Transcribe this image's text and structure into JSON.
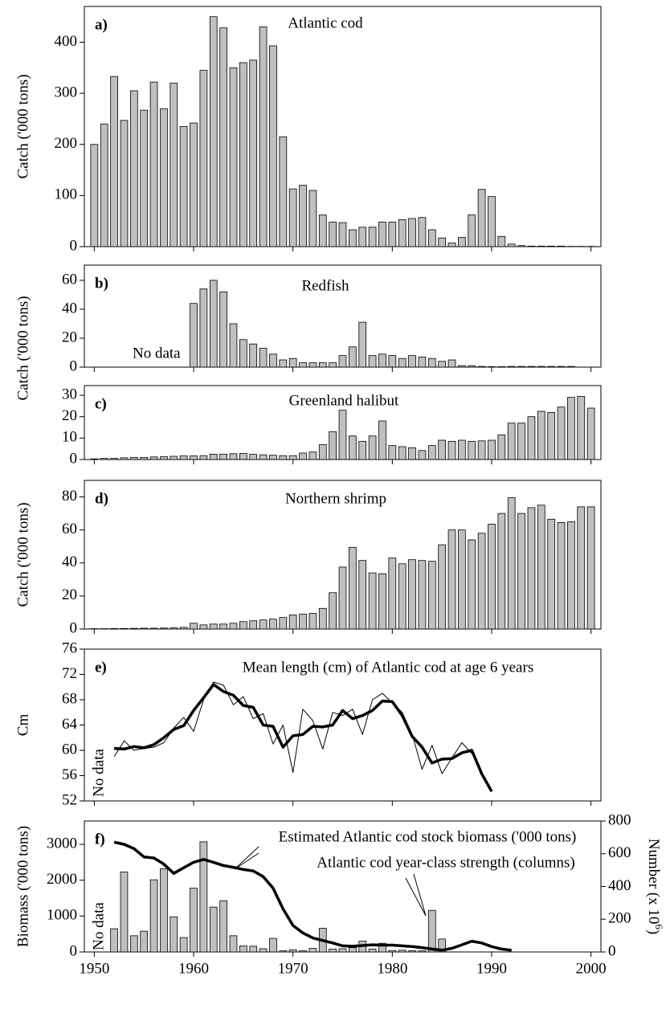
{
  "chart_data": [
    {
      "type": "bar",
      "panel": "a)",
      "title": "Atlantic cod",
      "ylabel": "Catch ('000 tons)",
      "x": [
        1950,
        1951,
        1952,
        1953,
        1954,
        1955,
        1956,
        1957,
        1958,
        1959,
        1960,
        1961,
        1962,
        1963,
        1964,
        1965,
        1966,
        1967,
        1968,
        1969,
        1970,
        1971,
        1972,
        1973,
        1974,
        1975,
        1976,
        1977,
        1978,
        1979,
        1980,
        1981,
        1982,
        1983,
        1984,
        1985,
        1986,
        1987,
        1988,
        1989,
        1990,
        1991,
        1992,
        1993,
        1994,
        1995,
        1996,
        1997,
        1998,
        1999,
        2000
      ],
      "series": [
        {
          "color": "#bfbfbf",
          "values": [
            200,
            240,
            333,
            247,
            305,
            267,
            322,
            270,
            320,
            235,
            242,
            345,
            450,
            428,
            350,
            360,
            365,
            430,
            393,
            215,
            113,
            120,
            110,
            62,
            48,
            47,
            33,
            38,
            38,
            48,
            48,
            53,
            55,
            57,
            33,
            17,
            7,
            18,
            62,
            112,
            98,
            20,
            5,
            2,
            1,
            1,
            1,
            1,
            0.5,
            0.5,
            0.5
          ]
        }
      ],
      "xlim": [
        1949,
        2001
      ],
      "xticks": [
        1950,
        1960,
        1970,
        1980,
        1990,
        2000
      ],
      "ylim": [
        0,
        470
      ],
      "yticks": [
        0,
        100,
        200,
        300,
        400
      ]
    },
    {
      "type": "bar",
      "panel": "b)",
      "title": "Redfish",
      "ylabel": "Catch ('000 tons)",
      "annotation": "No data",
      "x": [
        1950,
        1951,
        1952,
        1953,
        1954,
        1955,
        1956,
        1957,
        1958,
        1959,
        1960,
        1961,
        1962,
        1963,
        1964,
        1965,
        1966,
        1967,
        1968,
        1969,
        1970,
        1971,
        1972,
        1973,
        1974,
        1975,
        1976,
        1977,
        1978,
        1979,
        1980,
        1981,
        1982,
        1983,
        1984,
        1985,
        1986,
        1987,
        1988,
        1989,
        1990,
        1991,
        1992,
        1993,
        1994,
        1995,
        1996,
        1997,
        1998,
        1999,
        2000
      ],
      "series": [
        {
          "color": "#bfbfbf",
          "values": [
            null,
            null,
            null,
            null,
            null,
            null,
            null,
            null,
            null,
            null,
            44,
            54,
            60,
            52,
            30,
            19,
            16,
            13,
            9,
            5,
            6,
            3,
            3,
            3,
            3,
            8,
            14,
            31,
            8,
            9,
            8,
            6,
            8,
            7,
            6,
            4,
            5,
            1,
            1,
            0.5,
            0.3,
            0.3,
            0.5,
            0.5,
            0.5,
            0.5,
            0.5,
            0.5,
            0.5,
            null,
            null
          ]
        }
      ],
      "xlim": [
        1949,
        2001
      ],
      "xticks": [
        1950,
        1960,
        1970,
        1980,
        1990,
        2000
      ],
      "ylim": [
        0,
        70.5
      ],
      "yticks": [
        0,
        20,
        40,
        60
      ]
    },
    {
      "type": "bar",
      "panel": "c)",
      "title": "Greenland halibut",
      "x": [
        1950,
        1951,
        1952,
        1953,
        1954,
        1955,
        1956,
        1957,
        1958,
        1959,
        1960,
        1961,
        1962,
        1963,
        1964,
        1965,
        1966,
        1967,
        1968,
        1969,
        1970,
        1971,
        1972,
        1973,
        1974,
        1975,
        1976,
        1977,
        1978,
        1979,
        1980,
        1981,
        1982,
        1983,
        1984,
        1985,
        1986,
        1987,
        1988,
        1989,
        1990,
        1991,
        1992,
        1993,
        1994,
        1995,
        1996,
        1997,
        1998,
        1999,
        2000
      ],
      "series": [
        {
          "color": "#bfbfbf",
          "values": [
            0.3,
            0.5,
            0.5,
            0.8,
            1,
            1,
            1.2,
            1.3,
            1.5,
            1.7,
            1.7,
            1.8,
            2.5,
            2.5,
            2.7,
            2.8,
            2.4,
            2.2,
            2,
            1.8,
            1.8,
            3,
            3.5,
            7,
            13,
            23,
            11,
            8.5,
            11,
            18,
            6.5,
            6,
            5.5,
            4.2,
            6.5,
            9,
            8.5,
            9,
            8.5,
            8.7,
            9,
            11.5,
            17,
            17,
            20,
            22.5,
            22,
            24.5,
            29,
            29.5,
            24
          ]
        }
      ],
      "xlim": [
        1949,
        2001
      ],
      "xticks": [
        1950,
        1960,
        1970,
        1980,
        1990,
        2000
      ],
      "ylim": [
        0,
        34.5
      ],
      "yticks": [
        0,
        10,
        20,
        30
      ]
    },
    {
      "type": "bar",
      "panel": "d)",
      "title": "Northern shrimp",
      "ylabel": "Catch ('000 tons)",
      "x": [
        1950,
        1951,
        1952,
        1953,
        1954,
        1955,
        1956,
        1957,
        1958,
        1959,
        1960,
        1961,
        1962,
        1963,
        1964,
        1965,
        1966,
        1967,
        1968,
        1969,
        1970,
        1971,
        1972,
        1973,
        1974,
        1975,
        1976,
        1977,
        1978,
        1979,
        1980,
        1981,
        1982,
        1983,
        1984,
        1985,
        1986,
        1987,
        1988,
        1989,
        1990,
        1991,
        1992,
        1993,
        1994,
        1995,
        1996,
        1997,
        1998,
        1999,
        2000
      ],
      "series": [
        {
          "color": "#bfbfbf",
          "values": [
            0.2,
            0.2,
            0.3,
            0.3,
            0.4,
            0.5,
            0.5,
            0.6,
            0.7,
            1,
            3.5,
            2.5,
            3,
            3,
            3.5,
            4.5,
            5,
            5.5,
            6,
            7,
            8.5,
            9,
            9.5,
            12.5,
            22,
            37.5,
            49.5,
            41.5,
            34,
            33.5,
            43,
            39.5,
            42,
            41.5,
            41,
            51,
            60,
            60,
            54,
            58,
            63.5,
            70,
            79.5,
            70,
            73.5,
            75,
            66.5,
            64.5,
            65,
            74,
            74
          ]
        }
      ],
      "xlim": [
        1949,
        2001
      ],
      "xticks": [
        1950,
        1960,
        1970,
        1980,
        1990,
        2000
      ],
      "ylim": [
        0,
        90
      ],
      "yticks": [
        0,
        20,
        40,
        60,
        80
      ]
    },
    {
      "type": "line",
      "panel": "e)",
      "title": "Mean length (cm) of Atlantic cod at age 6 years",
      "ylabel": "Cm",
      "annotation": "No data",
      "x": [
        1952,
        1953,
        1954,
        1955,
        1956,
        1957,
        1958,
        1959,
        1960,
        1961,
        1962,
        1963,
        1964,
        1965,
        1966,
        1967,
        1968,
        1969,
        1970,
        1971,
        1972,
        1973,
        1974,
        1975,
        1976,
        1977,
        1978,
        1979,
        1980,
        1981,
        1982,
        1983,
        1984,
        1985,
        1986,
        1987,
        1988,
        1989,
        1990
      ],
      "series": [
        {
          "color": "#000000",
          "linewidth": 1,
          "values": [
            59,
            61.5,
            60,
            60.3,
            60.5,
            61.2,
            63.5,
            65.2,
            63,
            68,
            70.8,
            70.3,
            67.2,
            68.5,
            65,
            65.8,
            61,
            64,
            56.5,
            66.5,
            64.7,
            60.2,
            66,
            65.5,
            66.5,
            62.5,
            68,
            69,
            67.5,
            66,
            62.5,
            57,
            60.8,
            56.3,
            58.8,
            61.2,
            59.5,
            null,
            null
          ]
        },
        {
          "color": "#000000",
          "linewidth": 3.5,
          "values": [
            60.3,
            60.2,
            60.6,
            60.4,
            60.9,
            62,
            63.3,
            63.9,
            66.3,
            68.3,
            70.4,
            69.3,
            68.7,
            67.1,
            66.8,
            64,
            63.8,
            60.5,
            62.3,
            62.5,
            63.8,
            63.7,
            64,
            66.3,
            65,
            65.5,
            66.3,
            67.8,
            67.7,
            65.5,
            62.2,
            60.5,
            58,
            58.6,
            58.7,
            59.6,
            60,
            56.3,
            53.5
          ]
        }
      ],
      "xlim": [
        1949,
        2001
      ],
      "xticks": [
        1950,
        1960,
        1970,
        1980,
        1990,
        2000
      ],
      "ylim": [
        52,
        76
      ],
      "yticks": [
        52,
        56,
        60,
        64,
        68,
        72,
        76
      ]
    },
    {
      "type": "combo",
      "panel": "f)",
      "ylabel": "Biomass ('000 tons)",
      "y2label": [
        "Number (x 10",
        "6",
        ")"
      ],
      "annotation": "No data",
      "x": [
        1952,
        1953,
        1954,
        1955,
        1956,
        1957,
        1958,
        1959,
        1960,
        1961,
        1962,
        1963,
        1964,
        1965,
        1966,
        1967,
        1968,
        1969,
        1970,
        1971,
        1972,
        1973,
        1974,
        1975,
        1976,
        1977,
        1978,
        1979,
        1980,
        1981,
        1982,
        1983,
        1984,
        1985,
        1986,
        1987,
        1988,
        1989,
        1990,
        1991,
        1992
      ],
      "series": [
        {
          "name": "Atlantic cod year-class strength (columns)",
          "type": "bar",
          "axis": "y2",
          "color": "#bfbfbf",
          "values": [
            142,
            489,
            99,
            127,
            441,
            508,
            215,
            88,
            390,
            673,
            274,
            313,
            99,
            37,
            35,
            20,
            83,
            7,
            13,
            7,
            22,
            145,
            18,
            20,
            26,
            66,
            18,
            53,
            9,
            11,
            7,
            7,
            254,
            79,
            null,
            null,
            null,
            null,
            null,
            null,
            null
          ]
        },
        {
          "name": "Estimated Atlantic cod stock biomass ('000 tons)",
          "type": "line",
          "color": "#000000",
          "linewidth": 3.5,
          "values": [
            3060,
            3000,
            2880,
            2650,
            2620,
            2450,
            2190,
            2350,
            2500,
            2580,
            2500,
            2410,
            2360,
            2300,
            2260,
            2100,
            1780,
            1200,
            740,
            530,
            390,
            320,
            250,
            170,
            160,
            180,
            200,
            190,
            190,
            170,
            150,
            120,
            80,
            50,
            100,
            200,
            300,
            250,
            150,
            80,
            50
          ]
        }
      ],
      "xlim": [
        1949,
        2001
      ],
      "xticks": [
        1950,
        1960,
        1970,
        1980,
        1990,
        2000
      ],
      "xtick_labels": true,
      "ylim": [
        0,
        3650
      ],
      "yticks": [
        0,
        1000,
        2000,
        3000
      ],
      "y2lim": [
        0,
        800
      ],
      "y2ticks": [
        0,
        200,
        400,
        600,
        800
      ]
    }
  ]
}
